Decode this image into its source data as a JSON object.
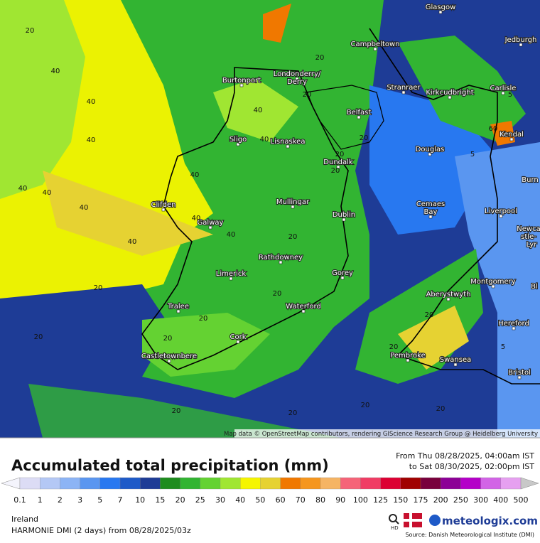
{
  "map": {
    "cities": [
      "Glasgow",
      "Campbeltown",
      "Jedburgh",
      "Burtonport",
      "Londonderry/",
      "Derry",
      "Stranraer",
      "Kirkcudbright",
      "Carlisle",
      "Belfast",
      "Sligo",
      "Lisnaskea",
      "Kendal",
      "Douglas",
      "Dundalk",
      "Burn",
      "Clifden",
      "Mullingar",
      "Cemaes",
      "Bay",
      "Liverpool",
      "Galway",
      "Dublin",
      "Newca",
      "stle-",
      "Lyr",
      "Rathdowney",
      "Limerick",
      "Gorey",
      "Montgomery",
      "Bl",
      "Aberystwyth",
      "Tralee",
      "Waterford",
      "Hereford",
      "Cork",
      "Pembroke",
      "Swansea",
      "Castletownbere",
      "Bristol"
    ],
    "contour_labels": [
      20,
      40,
      40,
      40,
      40,
      40,
      40,
      40,
      20,
      20,
      40,
      40,
      20,
      40,
      40,
      40,
      20,
      20,
      20,
      20,
      20,
      20,
      20,
      20,
      20,
      20,
      20,
      20,
      20,
      5,
      5,
      5,
      20,
      60
    ],
    "attribution": "Map data © OpenStreetMap contributors, rendering GIScience Research Group @ Heidelberg University"
  },
  "footer": {
    "title": "Accumulated total precipitation (mm)",
    "from": "From Thu 08/28/2025, 04:00am IST",
    "to": "to Sat 08/30/2025, 02:00pm IST",
    "region": "Ireland",
    "model": "HARMONIE DMI (2 days) from 08/28/2025/03z",
    "hd": "HD",
    "logo": "meteologix.com",
    "source": "Source: Danish Meteorological Institute (DMI)"
  },
  "legend": {
    "values": [
      0.1,
      1,
      2,
      3,
      5,
      7,
      10,
      15,
      20,
      25,
      30,
      40,
      50,
      60,
      70,
      80,
      90,
      100,
      125,
      150,
      175,
      200,
      250,
      300,
      400,
      500
    ],
    "colors": [
      "#f4f4fc",
      "#dcdcf5",
      "#b4c8f5",
      "#8cb4f5",
      "#5a96f0",
      "#2878f0",
      "#1e5ac8",
      "#1e3c96",
      "#1e8c1e",
      "#32b432",
      "#64d232",
      "#a0e632",
      "#f5f500",
      "#e6d232",
      "#f07800",
      "#f5961e",
      "#f5b464",
      "#f56478",
      "#f03c64",
      "#dc0032",
      "#a00000",
      "#78003c",
      "#8c0096",
      "#b400c8",
      "#d264e6",
      "#e6a0f0",
      "#f5e6fa",
      "#c8c8c8"
    ]
  }
}
